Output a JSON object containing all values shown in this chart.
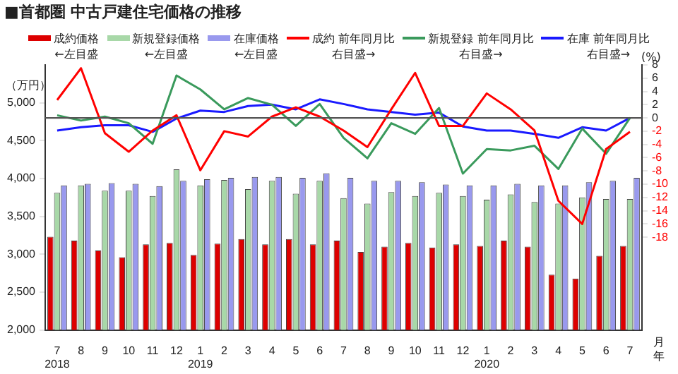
{
  "chart_data": {
    "type": "bar",
    "title": "■首都圏 中古戸建住宅価格の推移",
    "ylabel": "（万円）",
    "y2label": "(%)",
    "xlabel": "月年",
    "categories": [
      "7\n2018",
      "8",
      "9",
      "10",
      "11",
      "12",
      "1\n2019",
      "2",
      "3",
      "4",
      "5",
      "6",
      "7",
      "8",
      "9",
      "10",
      "11",
      "12",
      "1\n2020",
      "2",
      "3",
      "4",
      "5",
      "6",
      "7"
    ],
    "series": [
      {
        "name": "成約価格←左目盛",
        "color": "#dd0000",
        "values": [
          3230,
          3180,
          3050,
          2960,
          3130,
          3150,
          2990,
          3140,
          3200,
          3130,
          3200,
          3130,
          3180,
          3030,
          3100,
          3150,
          3090,
          3130,
          3110,
          3180,
          3100,
          2730,
          2680,
          2980,
          3110
        ]
      },
      {
        "name": "新規登録価格←左目盛",
        "color": "#a8d8a8",
        "values": [
          3810,
          3910,
          3840,
          3840,
          3770,
          4120,
          3910,
          3980,
          3860,
          3970,
          3800,
          3970,
          3740,
          3670,
          3820,
          3770,
          3810,
          3770,
          3720,
          3790,
          3690,
          3670,
          3750,
          3730,
          3730
        ]
      },
      {
        "name": "在庫価格←左目盛",
        "color": "#9999ee",
        "values": [
          3910,
          3930,
          3940,
          3930,
          3900,
          3970,
          3990,
          4010,
          4020,
          4020,
          4010,
          4070,
          4010,
          3970,
          3970,
          3950,
          3920,
          3910,
          3910,
          3930,
          3910,
          3910,
          3950,
          3970,
          4010
        ]
      },
      {
        "name": "成約 前年同月比右目盛→",
        "type": "line",
        "axis": "y2",
        "color": "#ff0000",
        "values": [
          2.7,
          7.5,
          -2.3,
          -5.1,
          -1.9,
          0.4,
          -7.9,
          -2.0,
          -2.8,
          0.2,
          1.6,
          0.2,
          -1.9,
          -4.4,
          1.3,
          6.8,
          -1.2,
          -1.2,
          3.7,
          1.3,
          -1.9,
          -12.5,
          -16.0,
          -4.7,
          -2.1
        ]
      },
      {
        "name": "新規登録 前年同月比右目盛→",
        "type": "line",
        "axis": "y2",
        "color": "#3a9a5c",
        "values": [
          0.4,
          -0.4,
          0.2,
          -0.8,
          -3.9,
          6.4,
          4.3,
          1.3,
          3.0,
          2.0,
          -1.2,
          2.1,
          -3.0,
          -6.1,
          -0.8,
          -2.4,
          1.5,
          -8.4,
          -4.7,
          -4.9,
          -4.2,
          -7.7,
          -1.6,
          -5.4,
          0.0
        ]
      },
      {
        "name": "在庫 前年同月比右目盛→",
        "type": "line",
        "axis": "y2",
        "color": "#1a1aff",
        "values": [
          -1.9,
          -1.4,
          -1.1,
          -1.1,
          -2.1,
          -0.1,
          1.1,
          0.9,
          1.8,
          2.0,
          1.3,
          2.8,
          2.1,
          1.3,
          0.9,
          0.5,
          0.8,
          -1.3,
          -1.9,
          -1.9,
          -2.4,
          -3.0,
          -1.4,
          -1.9,
          0.0
        ]
      }
    ],
    "ylim": [
      2000,
      5500
    ],
    "yticks": [
      {
        "value": 2000,
        "label": "2,000"
      },
      {
        "value": 2500,
        "label": "2,500"
      },
      {
        "value": 3000,
        "label": "3,000"
      },
      {
        "value": 3500,
        "label": "3,500"
      },
      {
        "value": 4000,
        "label": "4,000"
      },
      {
        "value": 4500,
        "label": "4,500"
      },
      {
        "value": 5000,
        "label": "5,000"
      }
    ],
    "y2lim": [
      -32,
      8
    ],
    "y2ticks": [
      8,
      6,
      4,
      2,
      0,
      -2,
      -4,
      -6,
      -8,
      -10,
      -12,
      -14,
      -16,
      -18
    ],
    "ref_lines": [
      {
        "axis": "y2",
        "value": 0,
        "color": "#555555"
      }
    ],
    "grid": false,
    "legend": "top",
    "marker": "none",
    "line_style": "solid"
  }
}
